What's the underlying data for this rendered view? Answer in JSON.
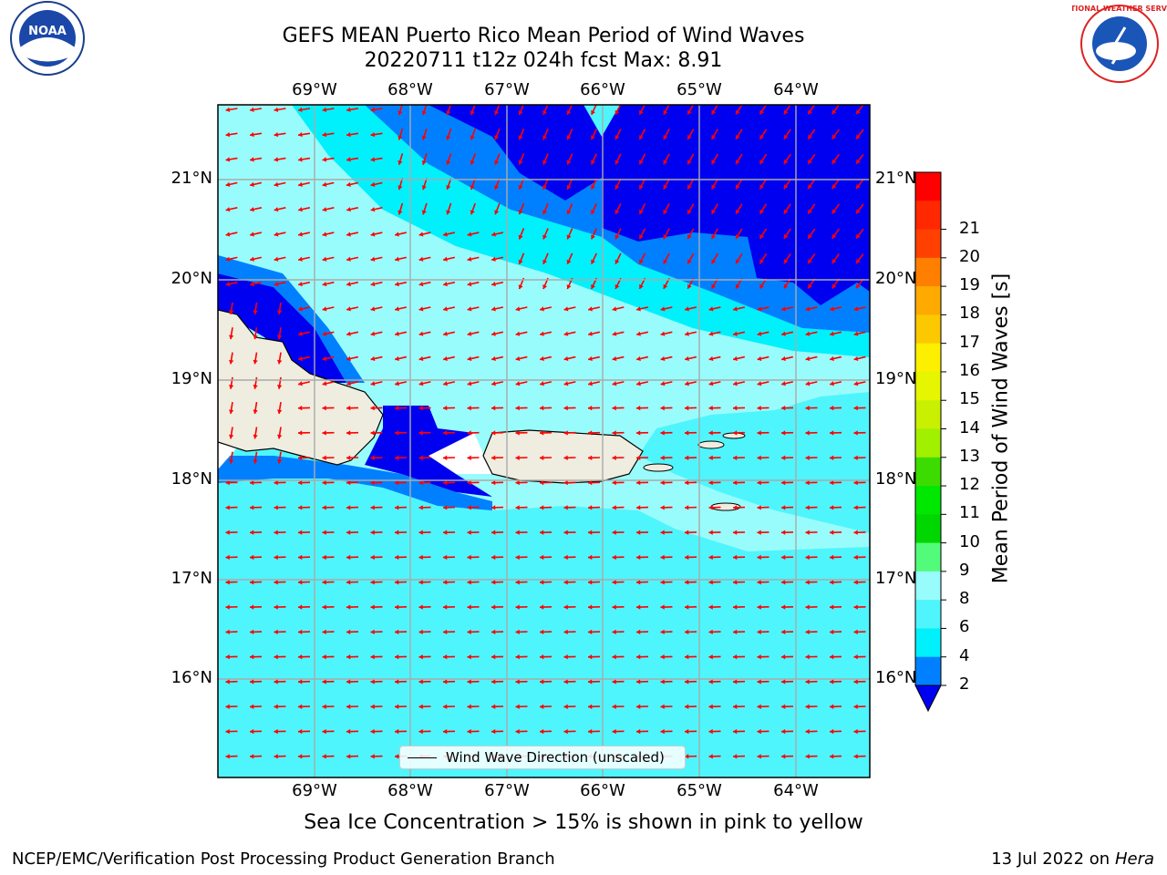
{
  "title": {
    "line1": "GEFS MEAN Puerto Rico Mean Period of Wind Waves",
    "line2": "20220711 t12z 024h fcst   Max: 8.91"
  },
  "map": {
    "lon_labels": [
      "69°W",
      "68°W",
      "67°W",
      "66°W",
      "65°W",
      "64°W"
    ],
    "lat_labels": [
      "21°N",
      "20°N",
      "19°N",
      "18°N",
      "17°N",
      "16°N"
    ],
    "legend_text": "Wind Wave Direction (unscaled)",
    "colors": {
      "ocean_light": "#4ff5fc",
      "ocean_pale": "#99fcfc",
      "ocean_cyan": "#00f0fc",
      "ocean_mid": "#0080ff",
      "ocean_dark": "#0000f0",
      "land": "#eeede0",
      "arrow": "#ff0000",
      "grid": "#aaaaaa"
    }
  },
  "colorbar": {
    "label": "Mean Period of Wind Waves [s]",
    "ticks": [
      "2",
      "4",
      "6",
      "8",
      "9",
      "10",
      "11",
      "12",
      "13",
      "14",
      "15",
      "16",
      "17",
      "18",
      "19",
      "20",
      "21"
    ],
    "colors": [
      "#0080ff",
      "#00f0fc",
      "#4ff5fc",
      "#99fcfc",
      "#52fc7a",
      "#00d700",
      "#00e800",
      "#3cdc00",
      "#a0f000",
      "#c8f000",
      "#e6f500",
      "#fcf000",
      "#fcc800",
      "#ffaa00",
      "#ff8000",
      "#ff4000",
      "#ff2800",
      "#ff0000"
    ],
    "extend_color": "#0000f0"
  },
  "footer": {
    "note": "Sea Ice Concentration > 15% is shown in pink to yellow",
    "credit": "NCEP/EMC/Verification Post Processing Product Generation Branch",
    "date_text": "13 Jul 2022 on ",
    "date_host": "Hera"
  },
  "logos": {
    "noaa_text": "NOAA",
    "nws_text": "NATIONAL WEATHER SERVICE"
  }
}
